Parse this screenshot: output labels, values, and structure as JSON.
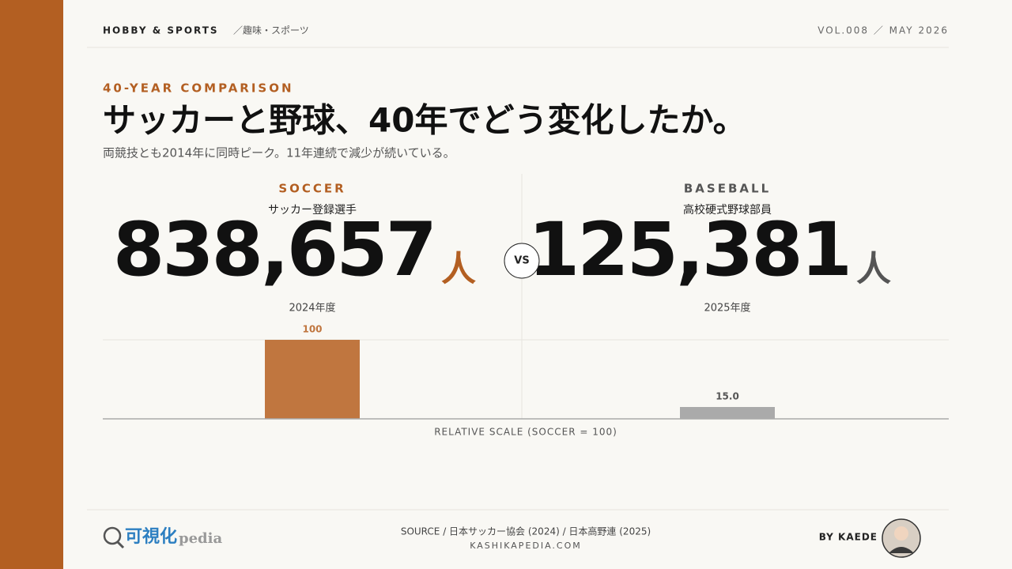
{
  "header": {
    "category": "HOBBY & SPORTS",
    "category_ja": "／趣味・スポーツ",
    "issue": "VOL.008 ／ MAY 2026"
  },
  "eyebrow": "40-YEAR COMPARISON",
  "title": "サッカーと野球、40年でどう変化したか。",
  "subtitle": "両競技とも2014年に同時ピーク。11年連続で減少が続いている。",
  "comparison": [
    {
      "label": "SOCCER",
      "name": "サッカー登録選手",
      "value": "838,657",
      "unit": "人",
      "year": "2024年度"
    },
    {
      "label": "BASEBALL",
      "name": "高校硬式野球部員",
      "value": "125,381",
      "unit": "人",
      "year": "2025年度"
    }
  ],
  "vs": "VS",
  "chart_data": {
    "type": "bar",
    "categories": [
      null,
      null
    ],
    "values": [
      100,
      15.0
    ],
    "value_labels": [
      "100",
      "15.0"
    ],
    "colors": [
      "#c0763f",
      "#aaaaaa"
    ],
    "xlabel": "RELATIVE SCALE (SOCCER = 100)",
    "ylim": [
      0,
      100
    ]
  },
  "footer": {
    "logo_main": "可視化",
    "logo_sub": "pedia",
    "source": "SOURCE / 日本サッカー協会 (2024) / 日本高野連 (2025)",
    "site": "KASHIKAPEDIA.COM",
    "byline": "BY KAEDE"
  }
}
